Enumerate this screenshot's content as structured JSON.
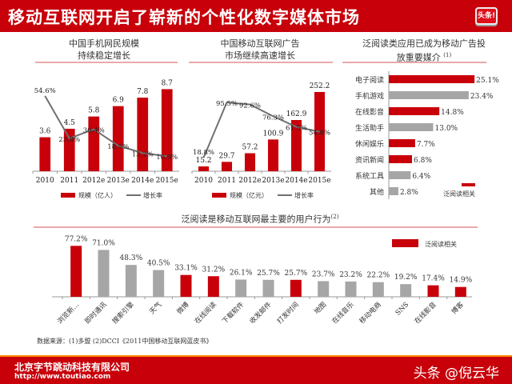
{
  "header": {
    "title": "移动互联网开启了崭新的个性化数字媒体市场",
    "logo_text": "头条!"
  },
  "footer": {
    "company": "北京字节跳动科技有限公司",
    "url": "http://www.toutiao.com",
    "brand": "头条 @倪云华"
  },
  "source": "数据来源：(1)多盟 (2)DCCI《2011中国移动互联网蓝皮书》",
  "colors": {
    "red": "#c8000a",
    "gray": "#a6a6a6",
    "line": "#707070"
  },
  "chart_data": [
    {
      "type": "bar",
      "title": "中国手机网民规模\n持续稳定增长",
      "title_line1": "中国手机网民规模",
      "title_line2": "持续稳定增长",
      "categories": [
        "2010",
        "2011",
        "2012e",
        "2013e",
        "2014e",
        "2015e"
      ],
      "series": [
        {
          "name": "规模（亿人）",
          "kind": "bar",
          "values": [
            3.6,
            4.5,
            5.8,
            6.9,
            7.8,
            8.7
          ],
          "labels": [
            "3.6",
            "4.5",
            "5.8",
            "6.9",
            "7.8",
            "8.7"
          ]
        },
        {
          "name": "增长率",
          "kind": "line",
          "values": [
            54.6,
            23.8,
            30.4,
            18.5,
            13.2,
            10.9
          ],
          "labels": [
            "54.6%",
            "23.8%",
            "30.4%",
            "18.5%",
            "13.2%",
            "10.9%"
          ]
        }
      ],
      "ylim": [
        0,
        9.5
      ],
      "y2lim": [
        0,
        65
      ],
      "legend": "bottom"
    },
    {
      "type": "bar",
      "title_line1": "中国移动互联网广告",
      "title_line2": "市场继续高速增长",
      "categories": [
        "2010",
        "2011",
        "2012e",
        "2013e",
        "2014e",
        "2015e"
      ],
      "series": [
        {
          "name": "规模（亿元）",
          "kind": "bar",
          "values": [
            15.2,
            29.7,
            57.2,
            100.9,
            162.9,
            252.2
          ],
          "labels": [
            "15.2",
            "29.7",
            "57.2",
            "100.9",
            "162.9",
            "252.2"
          ]
        },
        {
          "name": "增长率",
          "kind": "line",
          "values": [
            18.8,
            95.5,
            92.6,
            76.3,
            61.5,
            54.8
          ],
          "labels": [
            "18.8%",
            "95.5%",
            "92.6%",
            "76.3%",
            "61.5%",
            "54.8%"
          ]
        }
      ],
      "ylim": [
        0,
        275
      ],
      "y2lim": [
        0,
        120
      ],
      "legend": "bottom"
    },
    {
      "type": "bar",
      "orientation": "horizontal",
      "title_line1": "泛阅读类应用已成为移动广告投",
      "title_line2": "放重要媒介",
      "title_note": "(1)",
      "categories": [
        "电子阅读",
        "手机游戏",
        "在线影音",
        "生活助手",
        "休闲娱乐",
        "资讯新闻",
        "系统工具",
        "其他"
      ],
      "values": [
        25.1,
        23.4,
        14.8,
        13.0,
        7.7,
        6.8,
        6.4,
        2.8
      ],
      "labels": [
        "25.1%",
        "23.4%",
        "14.8%",
        "13.0%",
        "7.7%",
        "6.8%",
        "6.4%",
        "2.8%"
      ],
      "highlight": [
        true,
        false,
        true,
        false,
        true,
        true,
        false,
        false
      ],
      "xlim": [
        0,
        26
      ],
      "legend_label": "泛阅读相关",
      "legend": "bottom-right"
    },
    {
      "type": "bar",
      "title": "泛阅读是移动互联网最主要的用户行为",
      "title_note": "(2)",
      "categories": [
        "浏览新…",
        "即时通讯",
        "搜索引擎",
        "天气",
        "微博",
        "在线阅读",
        "下载软件",
        "收发邮件",
        "打发时间",
        "地图",
        "在线音乐",
        "移动电商",
        "SNS",
        "在线影音",
        "博客"
      ],
      "values": [
        77.2,
        71.0,
        48.3,
        40.5,
        33.1,
        31.2,
        26.1,
        25.7,
        25.7,
        23.7,
        23.2,
        22.2,
        19.2,
        17.4,
        14.9
      ],
      "labels": [
        "77.2%",
        "71.0%",
        "48.3%",
        "40.5%",
        "33.1%",
        "31.2%",
        "26.1%",
        "25.7%",
        "25.7%",
        "23.7%",
        "23.2%",
        "22.2%",
        "19.2%",
        "17.4%",
        "14.9%"
      ],
      "highlight": [
        true,
        false,
        false,
        false,
        true,
        true,
        false,
        false,
        true,
        false,
        false,
        false,
        false,
        true,
        true
      ],
      "ylim": [
        0,
        80
      ],
      "legend_label": "泛阅读相关",
      "legend": "top-right"
    }
  ]
}
